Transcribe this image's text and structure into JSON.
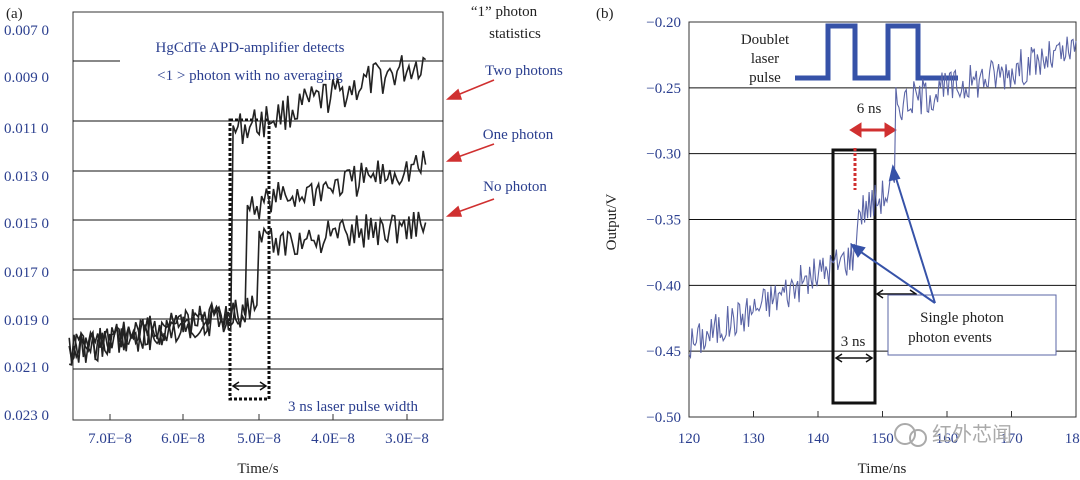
{
  "colors": {
    "accent": "#2b3f8f",
    "red": "#d03030",
    "trace_b": "#5a64a6",
    "trace_a": "#222222"
  },
  "chart_data": [
    {
      "panel_label": "(a)",
      "type": "line",
      "xlabel": "Time/s",
      "x_tick_labels": [
        "7.0E−8",
        "6.0E−8",
        "5.0E−8",
        "4.0E−8",
        "3.0E−8"
      ],
      "y_tick_labels": [
        "0.007 0",
        "0.009 0",
        "0.011 0",
        "0.013 0",
        "0.015 0",
        "0.017 0",
        "0.019 0",
        "0.021 0",
        "0.023 0"
      ],
      "grid": true,
      "annotations": {
        "statistics_title_line1": "“1” photon",
        "statistics_title_line2": "statistics",
        "detector_line1": "HgCdTe APD-amplifier detects",
        "detector_line2": "<1 > photon with no averaging",
        "two_photons": "Two photons",
        "one_photon": "One photon",
        "no_photon": "No photon",
        "pulse_width": "3 ns laser pulse width"
      },
      "series": [
        {
          "name": "Two photons",
          "level_start": 0.0202,
          "level_end": 0.0085,
          "step_x": 5.35e-08
        },
        {
          "name": "One photon",
          "level_start": 0.0202,
          "level_end": 0.0127,
          "step_x": 5.15e-08
        },
        {
          "name": "No photon",
          "level_start": 0.0202,
          "level_end": 0.015,
          "step_x": 5e-08
        }
      ],
      "markers": {
        "pulse_window_x": [
          5.45e-08,
          5.05e-08
        ]
      }
    },
    {
      "panel_label": "(b)",
      "type": "line",
      "xlabel": "Time/ns",
      "ylabel": "Output/V",
      "xlim": [
        120,
        180
      ],
      "ylim": [
        -0.5,
        -0.2
      ],
      "x_tick_labels": [
        "120",
        "130",
        "140",
        "150",
        "160",
        "170",
        "180"
      ],
      "y_tick_labels": [
        "−0.20",
        "−0.25",
        "−0.30",
        "−0.35",
        "−0.40",
        "−0.45",
        "−0.50"
      ],
      "grid": true,
      "annotations": {
        "laser_line1": "Doublet",
        "laser_line2": "laser",
        "laser_line3": "pulse",
        "six_ns": "6 ns",
        "three_ns": "3 ns",
        "events_line1": "Single photon",
        "events_line2": "photon events"
      },
      "series": [
        {
          "name": "Output",
          "x_start": 120,
          "x_end": 180,
          "y_start": -0.445,
          "y_end": -0.225,
          "steps": [
            {
              "x": 146,
              "y": -0.34
            },
            {
              "x": 152,
              "y": -0.26
            }
          ]
        }
      ],
      "markers": {
        "window_x": [
          143.5,
          149.5
        ],
        "photon_events_x": [
          146,
          152
        ]
      }
    }
  ],
  "watermark": "红外芯闻"
}
